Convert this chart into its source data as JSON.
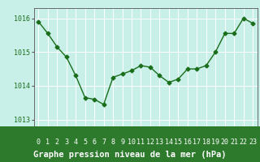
{
  "x": [
    0,
    1,
    2,
    3,
    4,
    5,
    6,
    7,
    8,
    9,
    10,
    11,
    12,
    13,
    14,
    15,
    16,
    17,
    18,
    19,
    20,
    21,
    22,
    23
  ],
  "y": [
    1015.9,
    1015.55,
    1015.15,
    1014.85,
    1014.3,
    1013.65,
    1013.6,
    1013.45,
    1014.25,
    1014.35,
    1014.45,
    1014.6,
    1014.55,
    1014.3,
    1014.1,
    1014.2,
    1014.5,
    1014.5,
    1014.6,
    1015.0,
    1015.55,
    1015.55,
    1016.0,
    1015.85
  ],
  "line_color": "#1a6e1a",
  "marker": "D",
  "marker_size": 2.5,
  "bg_color": "#c8efe8",
  "footer_bg": "#2d7a2d",
  "grid_color": "#ffffff",
  "ylabel_ticks": [
    1013,
    1014,
    1015,
    1016
  ],
  "xlabel_ticks": [
    0,
    1,
    2,
    3,
    4,
    5,
    6,
    7,
    8,
    9,
    10,
    11,
    12,
    13,
    14,
    15,
    16,
    17,
    18,
    19,
    20,
    21,
    22,
    23
  ],
  "xlabel": "Graphe pression niveau de la mer (hPa)",
  "ylim": [
    1012.8,
    1016.3
  ],
  "xlim": [
    -0.5,
    23.5
  ],
  "tick_fontsize": 6,
  "label_fontsize": 7.5,
  "tick_color": "#ffffff",
  "label_color": "#ffffff",
  "plot_tick_color": "#1a6e1a",
  "axis_color": "#555555"
}
